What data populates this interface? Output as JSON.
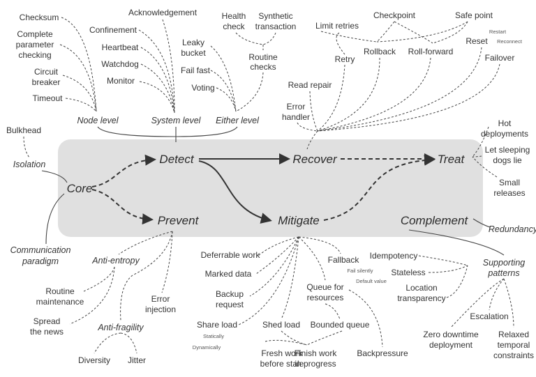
{
  "core": "Core",
  "stages": {
    "detect": "Detect",
    "prevent": "Prevent",
    "recover": "Recover",
    "mitigate": "Mitigate",
    "treat": "Treat",
    "complement": "Complement"
  },
  "colors": {
    "box": "#e0e0e0",
    "ink": "#333333"
  },
  "core_links": {
    "isolation": "Isolation",
    "bulkhead": "Bulkhead",
    "communication": [
      "Communication",
      "paradigm"
    ]
  },
  "detect": {
    "node_level": {
      "label": "Node level",
      "items": [
        "Checksum",
        [
          "Complete",
          "parameter",
          "checking"
        ],
        [
          "Circuit",
          "breaker"
        ],
        "Timeout"
      ]
    },
    "system_level": {
      "label": "System level",
      "items": [
        "Acknowledgement",
        "Confinement",
        "Heartbeat",
        "Watchdog",
        "Monitor"
      ]
    },
    "either_level": {
      "label": "Either level",
      "items": [
        [
          "Leaky",
          "bucket"
        ],
        "Fail fast",
        "Voting"
      ],
      "routine_checks": {
        "label": [
          "Routine",
          "checks"
        ],
        "items": [
          [
            "Health",
            "check"
          ],
          [
            "Synthetic",
            "transaction"
          ]
        ]
      }
    }
  },
  "recover": {
    "items": [
      "Limit retries",
      "Retry",
      "Checkpoint",
      "Safe point",
      "Rollback",
      "Roll-forward",
      "Reset",
      "Failover",
      "Read repair",
      [
        "Error",
        "handler"
      ]
    ],
    "reset_options": [
      "Restart",
      "Reconnect"
    ]
  },
  "treat": {
    "items": [
      [
        "Hot",
        "deployments"
      ],
      [
        "Let sleeping",
        "dogs lie"
      ],
      [
        "Small",
        "releases"
      ]
    ]
  },
  "prevent": {
    "anti_entropy": {
      "label": "Anti-entropy",
      "items": [
        [
          "Routine",
          "maintenance"
        ],
        [
          "Spread",
          "the news"
        ]
      ]
    },
    "anti_fragility": {
      "label": "Anti-fragility",
      "items": [
        "Diversity",
        "Jitter"
      ]
    },
    "error_injection": [
      "Error",
      "injection"
    ]
  },
  "mitigate": {
    "items": [
      "Deferrable work",
      "Marked data",
      [
        "Backup",
        "request"
      ],
      "Share load",
      "Shed load",
      "Fallback",
      [
        "Queue for",
        "resources"
      ],
      "Bounded queue",
      "Backpressure",
      [
        "Fresh work",
        "before stale"
      ],
      [
        "Finish work",
        "in progress"
      ]
    ],
    "share_load_options": [
      "Statically",
      "Dynamically"
    ],
    "fallback_options": [
      "Fail silently",
      "Default value"
    ]
  },
  "complement": {
    "redundancy": "Redundancy",
    "supporting": {
      "label": [
        "Supporting",
        "patterns"
      ],
      "items": [
        "Idempotency",
        "Stateless",
        [
          "Location",
          "transparency"
        ],
        [
          "Zero downtime",
          "deployment"
        ],
        "Escalation",
        [
          "Relaxed",
          "temporal",
          "constraints"
        ]
      ]
    }
  }
}
